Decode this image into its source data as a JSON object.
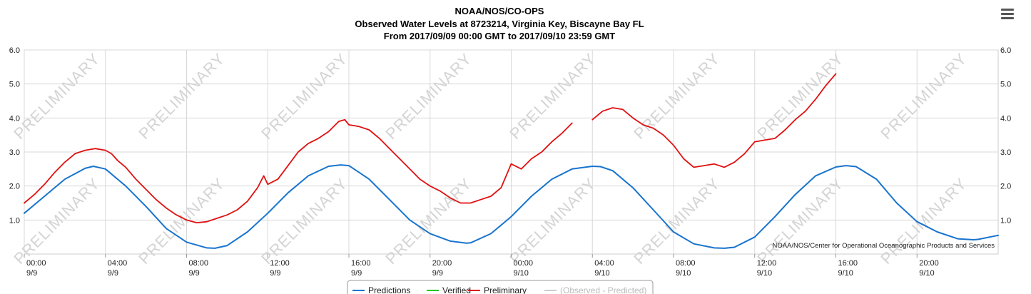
{
  "header": {
    "title_lines": [
      "NOAA/NOS/CO-OPS",
      "Observed Water Levels at 8723214, Virginia Key, Biscayne Bay FL",
      "From 2017/09/09 00:00 GMT to 2017/09/10 23:59 GMT"
    ]
  },
  "menu": {
    "icon": "hamburger-menu-icon"
  },
  "watermark": "PRELIMINARY",
  "credit": "NOAA/NOS/Center for Operational Oceanographic Products and Services",
  "colors": {
    "predictions": "#1874CD",
    "verified": "#22cc22",
    "preliminary": "#e01010",
    "observed_minus_predicted": "#cccccc",
    "grid": "#d8d8d8",
    "watermark": "#d4d4d4"
  },
  "legend": {
    "items": [
      {
        "label": "Predictions",
        "color": "#1874CD",
        "active": true
      },
      {
        "label": "Verified",
        "color": "#22cc22",
        "active": true
      },
      {
        "label": "Preliminary",
        "color": "#e01010",
        "active": true
      },
      {
        "label": "(Observed - Predicted)",
        "color": "#cccccc",
        "active": false
      }
    ]
  },
  "chart_data": {
    "type": "line",
    "x_unit": "hours since 2017/09/09 00:00 GMT",
    "xlim": [
      0,
      48
    ],
    "ylim": [
      0,
      6
    ],
    "y_ticks": [
      "1.0",
      "2.0",
      "3.0",
      "4.0",
      "5.0",
      "6.0"
    ],
    "x_ticks": [
      {
        "x": 0,
        "time": "00:00",
        "date": "9/9"
      },
      {
        "x": 4,
        "time": "04:00",
        "date": "9/9"
      },
      {
        "x": 8,
        "time": "08:00",
        "date": "9/9"
      },
      {
        "x": 12,
        "time": "12:00",
        "date": "9/9"
      },
      {
        "x": 16,
        "time": "16:00",
        "date": "9/9"
      },
      {
        "x": 20,
        "time": "20:00",
        "date": "9/9"
      },
      {
        "x": 24,
        "time": "00:00",
        "date": "9/10"
      },
      {
        "x": 28,
        "time": "04:00",
        "date": "9/10"
      },
      {
        "x": 32,
        "time": "08:00",
        "date": "9/10"
      },
      {
        "x": 36,
        "time": "12:00",
        "date": "9/10"
      },
      {
        "x": 40,
        "time": "16:00",
        "date": "9/10"
      },
      {
        "x": 44,
        "time": "20:00",
        "date": "9/10"
      }
    ],
    "grid": true,
    "legend_position": "bottom-center",
    "series": [
      {
        "name": "Predictions",
        "x": [
          0,
          1,
          2,
          3,
          3.4,
          4,
          5,
          6,
          7,
          8,
          9,
          9.4,
          10,
          11,
          12,
          13,
          14,
          15,
          15.6,
          16,
          17,
          18,
          19,
          20,
          21,
          21.8,
          22,
          23,
          24,
          25,
          26,
          27,
          28,
          28.4,
          29,
          30,
          31,
          32,
          33,
          34,
          34.5,
          35,
          36,
          37,
          38,
          39,
          40,
          40.5,
          41,
          42,
          43,
          44,
          45,
          46,
          46.8,
          47,
          48
        ],
        "y": [
          1.2,
          1.7,
          2.2,
          2.52,
          2.58,
          2.5,
          2.0,
          1.4,
          0.75,
          0.35,
          0.18,
          0.17,
          0.25,
          0.65,
          1.2,
          1.8,
          2.3,
          2.58,
          2.62,
          2.6,
          2.2,
          1.6,
          1.0,
          0.6,
          0.38,
          0.32,
          0.33,
          0.6,
          1.1,
          1.7,
          2.2,
          2.5,
          2.58,
          2.57,
          2.45,
          1.95,
          1.3,
          0.65,
          0.3,
          0.18,
          0.17,
          0.2,
          0.5,
          1.1,
          1.75,
          2.3,
          2.56,
          2.6,
          2.57,
          2.2,
          1.5,
          0.95,
          0.65,
          0.45,
          0.42,
          0.43,
          0.55
        ]
      },
      {
        "name": "Preliminary",
        "x": [
          0,
          0.5,
          1,
          1.5,
          2,
          2.5,
          3,
          3.5,
          4,
          4.3,
          4.6,
          5,
          5.5,
          6,
          6.5,
          7,
          7.5,
          8,
          8.5,
          9,
          9.5,
          10,
          10.5,
          11,
          11.5,
          11.8,
          12,
          12.5,
          13,
          13.5,
          14,
          14.5,
          15,
          15.5,
          15.8,
          16,
          16.5,
          17,
          17.5,
          18,
          18.5,
          19,
          19.5,
          20,
          20.5,
          21,
          21.5,
          22,
          22.5,
          23,
          23.5,
          24,
          24.5,
          25,
          25.5,
          26,
          26.5,
          27,
          27.5,
          28,
          28.5,
          29,
          29.5,
          30,
          30.5,
          31,
          31.5,
          32,
          32.5,
          33,
          33.5,
          34,
          34.5,
          35,
          35.5,
          36,
          36.5,
          37,
          37.5,
          38,
          38.5,
          39,
          39.5,
          40,
          40.5,
          41,
          41.5,
          42,
          42.5,
          43,
          43.5,
          44,
          44.5,
          45,
          45.5,
          46,
          46.5,
          47,
          47.5,
          48
        ],
        "y": [
          1.5,
          1.75,
          2.05,
          2.4,
          2.7,
          2.95,
          3.05,
          3.1,
          3.05,
          2.95,
          2.75,
          2.55,
          2.2,
          1.9,
          1.6,
          1.35,
          1.15,
          1.0,
          0.92,
          0.95,
          1.05,
          1.15,
          1.3,
          1.55,
          1.95,
          2.3,
          2.05,
          2.2,
          2.6,
          3.0,
          3.25,
          3.4,
          3.6,
          3.9,
          3.95,
          3.8,
          3.75,
          3.65,
          3.4,
          3.1,
          2.8,
          2.5,
          2.2,
          2.0,
          1.85,
          1.65,
          1.5,
          1.5,
          1.6,
          1.7,
          1.95,
          2.65,
          2.5,
          2.8,
          3.0,
          3.3,
          3.55,
          3.85,
          null,
          3.95,
          4.2,
          4.3,
          4.25,
          4.0,
          3.8,
          3.7,
          3.5,
          3.2,
          2.8,
          2.55,
          2.6,
          2.65,
          2.55,
          2.7,
          2.95,
          3.3,
          3.35,
          3.4,
          3.65,
          3.95,
          4.2,
          4.55,
          4.95,
          5.3,
          null,
          null,
          null,
          null,
          null,
          null,
          null,
          null,
          null,
          null,
          null,
          null,
          null,
          null,
          null,
          null
        ]
      }
    ]
  }
}
